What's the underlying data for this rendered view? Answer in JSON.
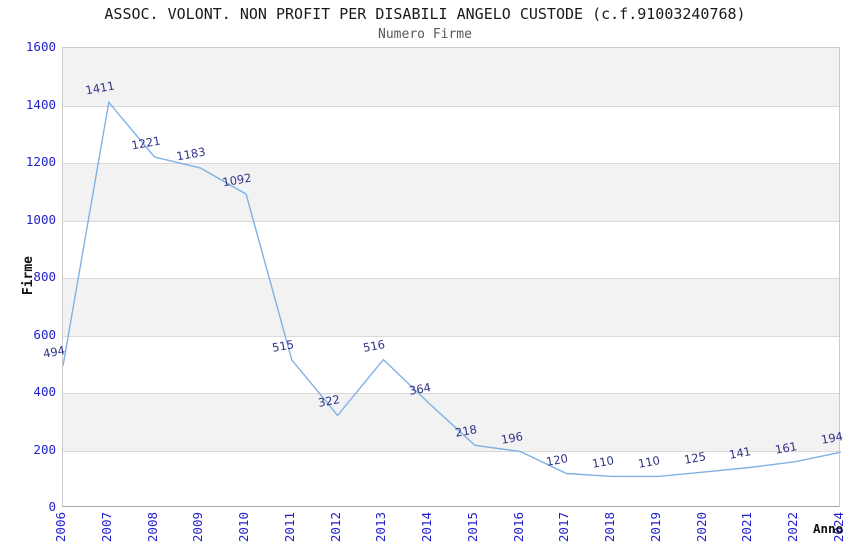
{
  "chart_data": {
    "type": "line",
    "title": "ASSOC. VOLONT. NON PROFIT PER DISABILI ANGELO CUSTODE (c.f.91003240768)",
    "subtitle": "Numero Firme",
    "xlabel": "Anno",
    "ylabel": "Firme",
    "categories": [
      "2006",
      "2007",
      "2008",
      "2009",
      "2010",
      "2011",
      "2012",
      "2013",
      "2014",
      "2015",
      "2016",
      "2017",
      "2018",
      "2019",
      "2020",
      "2021",
      "2022",
      "2024"
    ],
    "values": [
      494,
      1411,
      1221,
      1183,
      1092,
      515,
      322,
      516,
      364,
      218,
      196,
      120,
      110,
      110,
      125,
      141,
      161,
      194
    ],
    "ylim": [
      0,
      1600
    ],
    "ytick_step": 200,
    "grid": "horizontal-bands-alternating",
    "legend": "none",
    "data_labels_shown": true,
    "colors": {
      "line": "#7fb2e5",
      "tick_label": "#2222cc",
      "data_label": "#333388",
      "band": "#f2f2f2",
      "gridline": "#d9d9d9",
      "title": "#1a1a1a",
      "subtitle": "#595959",
      "axis_title": "#111111"
    }
  }
}
